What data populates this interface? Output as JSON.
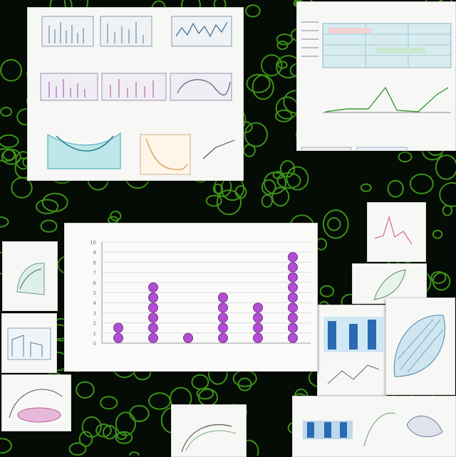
{
  "colors": {
    "background": "#050b05",
    "mesh": "#4fbf1f",
    "marker": "#b04fd0",
    "marker_stroke": "#7a2a99"
  },
  "chart_data": {
    "type": "scatter",
    "title": "",
    "xlabel": "",
    "ylabel": "",
    "categories": [
      "",
      "",
      "",
      "",
      "",
      ""
    ],
    "values": [
      2,
      6,
      1,
      5,
      4,
      9
    ],
    "ylim": [
      0,
      10
    ],
    "grid": true,
    "legend": "none"
  }
}
